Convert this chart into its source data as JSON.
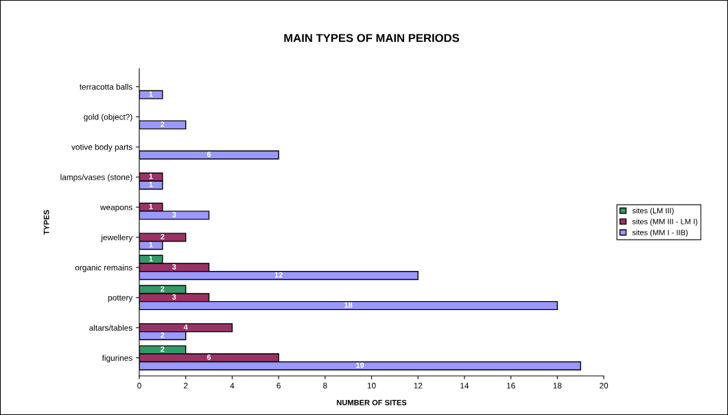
{
  "chart_data": {
    "type": "bar",
    "orientation": "horizontal",
    "title": "MAIN TYPES OF MAIN PERIODS",
    "xlabel": "NUMBER OF SITES",
    "ylabel": "TYPES",
    "categories": [
      "terracotta balls",
      "gold (object?)",
      "votive body parts",
      "lamps/vases (stone)",
      "weapons",
      "jewellery",
      "organic remains",
      "pottery",
      "altars/tables",
      "figurines"
    ],
    "series": [
      {
        "name": "sites (LM III)",
        "color": "#339966",
        "values": [
          null,
          null,
          null,
          null,
          null,
          null,
          1,
          2,
          null,
          2
        ]
      },
      {
        "name": "sites (MM III - LM I)",
        "color": "#993366",
        "values": [
          null,
          null,
          null,
          1,
          1,
          2,
          3,
          3,
          4,
          6
        ]
      },
      {
        "name": "sites (MM I - IIB)",
        "color": "#9999ff",
        "values": [
          1,
          2,
          6,
          1,
          3,
          1,
          12,
          18,
          2,
          19
        ]
      }
    ],
    "xlim": [
      0,
      20
    ],
    "xticks": [
      0,
      2,
      4,
      6,
      8,
      10,
      12,
      14,
      16,
      18,
      20
    ],
    "grid": false,
    "legend": "right",
    "data_labels": true
  }
}
